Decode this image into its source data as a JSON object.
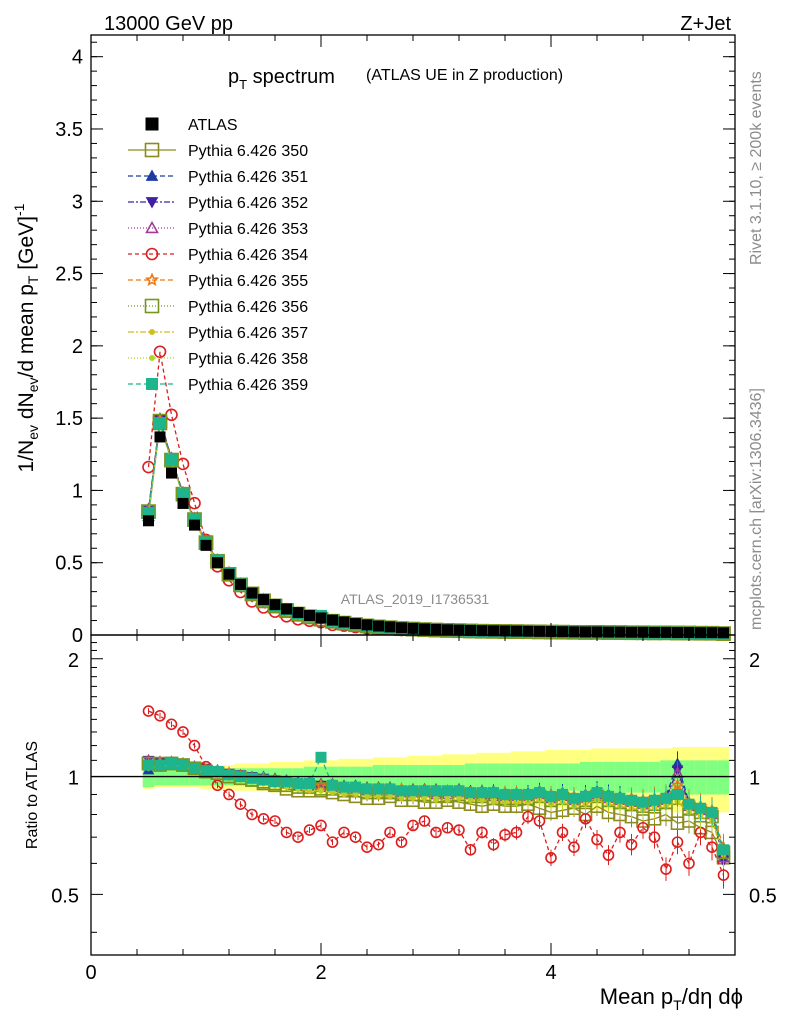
{
  "header": {
    "energy_label": "13000 GeV pp",
    "process_label": "Z+Jet"
  },
  "side_text": {
    "rivet": "Rivet 3.1.10, ≥ 200k events",
    "mcplots": "mcplots.cern.ch [arXiv:1306.3436]"
  },
  "chart_data": {
    "type": "line",
    "title": "p",
    "title_sub": "T",
    "title_rest": " spectrum",
    "title_note": "(ATLAS UE in Z production)",
    "analysis_id": "ATLAS_2019_I1736531",
    "xlabel_parts": [
      "Mean p",
      "T",
      "/dη dϕ"
    ],
    "ylabel_parts": [
      "1/N",
      "ev",
      " dN",
      "ev",
      "/d mean p",
      "T",
      " [GeV]",
      "-1"
    ],
    "ratio_ylabel": "Ratio to ATLAS",
    "xlim": [
      0,
      5.6
    ],
    "ylim": [
      0,
      4.15
    ],
    "ratio_ylim": [
      0.35,
      2.3
    ],
    "x_ticks": [
      "0",
      "2",
      "4"
    ],
    "y_ticks": [
      "0",
      "0.5",
      "1",
      "1.5",
      "2",
      "2.5",
      "3",
      "3.5",
      "4"
    ],
    "ratio_ticks": [
      "0.5",
      "1",
      "2"
    ],
    "x": [
      0.5,
      0.6,
      0.7,
      0.8,
      0.9,
      1.0,
      1.1,
      1.2,
      1.3,
      1.4,
      1.5,
      1.6,
      1.7,
      1.8,
      1.9,
      2.0,
      2.1,
      2.2,
      2.3,
      2.4,
      2.5,
      2.6,
      2.7,
      2.8,
      2.9,
      3.0,
      3.1,
      3.2,
      3.3,
      3.4,
      3.5,
      3.6,
      3.7,
      3.8,
      3.9,
      4.0,
      4.1,
      4.2,
      4.3,
      4.4,
      4.5,
      4.6,
      4.7,
      4.8,
      4.9,
      5.0,
      5.1,
      5.2,
      5.3,
      5.4,
      5.5
    ],
    "data_values": [
      0.79,
      1.37,
      1.12,
      0.91,
      0.76,
      0.62,
      0.5,
      0.42,
      0.35,
      0.29,
      0.245,
      0.21,
      0.18,
      0.155,
      0.135,
      0.118,
      0.103,
      0.09,
      0.079,
      0.07,
      0.062,
      0.056,
      0.05,
      0.046,
      0.042,
      0.039,
      0.036,
      0.034,
      0.032,
      0.03,
      0.029,
      0.028,
      0.027,
      0.026,
      0.025,
      0.024,
      0.023,
      0.022,
      0.021,
      0.021,
      0.02,
      0.02,
      0.019,
      0.019,
      0.018,
      0.018,
      0.017,
      0.017,
      0.016,
      0.016,
      0.015
    ],
    "band_inner": [
      0.06,
      0.05,
      0.05,
      0.05,
      0.05,
      0.05,
      0.05,
      0.05,
      0.05,
      0.05,
      0.05,
      0.05,
      0.05,
      0.05,
      0.06,
      0.06,
      0.06,
      0.06,
      0.06,
      0.06,
      0.07,
      0.07,
      0.07,
      0.07,
      0.07,
      0.07,
      0.07,
      0.07,
      0.08,
      0.08,
      0.08,
      0.08,
      0.08,
      0.08,
      0.08,
      0.08,
      0.08,
      0.08,
      0.09,
      0.09,
      0.09,
      0.09,
      0.09,
      0.09,
      0.09,
      0.1,
      0.1,
      0.1,
      0.1,
      0.1,
      0.1
    ],
    "band_outer": [
      0.07,
      0.06,
      0.06,
      0.06,
      0.06,
      0.07,
      0.07,
      0.07,
      0.08,
      0.08,
      0.08,
      0.09,
      0.09,
      0.09,
      0.1,
      0.1,
      0.1,
      0.11,
      0.11,
      0.11,
      0.12,
      0.12,
      0.12,
      0.13,
      0.13,
      0.13,
      0.14,
      0.14,
      0.14,
      0.15,
      0.15,
      0.15,
      0.16,
      0.16,
      0.16,
      0.17,
      0.17,
      0.17,
      0.17,
      0.18,
      0.18,
      0.18,
      0.18,
      0.18,
      0.18,
      0.18,
      0.19,
      0.19,
      0.19,
      0.19,
      0.19
    ],
    "series": [
      {
        "name": "ATLAS",
        "color": "#000000",
        "marker": "fsquare",
        "dash": "",
        "ratio": [
          1
        ]
      },
      {
        "name": "Pythia 6.426 350",
        "color": "#8c8c1e",
        "marker": "osquare",
        "dash": "",
        "ratio": [
          1.08,
          1.07,
          1.08,
          1.07,
          1.05,
          1.03,
          1.02,
          1.0,
          0.99,
          0.98,
          0.96,
          0.95,
          0.93,
          0.92,
          0.92,
          0.92,
          0.91,
          0.9,
          0.89,
          0.88,
          0.88,
          0.89,
          0.87,
          0.87,
          0.86,
          0.86,
          0.87,
          0.86,
          0.85,
          0.84,
          0.85,
          0.84,
          0.84,
          0.85,
          0.83,
          0.81,
          0.82,
          0.83,
          0.8,
          0.84,
          0.81,
          0.8,
          0.79,
          0.77,
          0.78,
          0.8,
          0.76,
          0.77,
          0.74,
          0.72,
          0.62
        ]
      },
      {
        "name": "Pythia 6.426 351",
        "color": "#1e3ca0",
        "marker": "ftriup",
        "dash": "5,3",
        "ratio": [
          1.04,
          1.08,
          1.09,
          1.07,
          1.06,
          1.04,
          1.04,
          1.02,
          1.01,
          1.0,
          1.0,
          0.99,
          0.98,
          0.97,
          0.97,
          0.96,
          0.96,
          0.95,
          0.95,
          0.94,
          0.94,
          0.94,
          0.93,
          0.93,
          0.93,
          0.93,
          0.92,
          0.93,
          0.92,
          0.92,
          0.92,
          0.91,
          0.91,
          0.91,
          0.92,
          0.9,
          0.91,
          0.89,
          0.9,
          0.92,
          0.9,
          0.89,
          0.88,
          0.87,
          0.88,
          0.89,
          1.08,
          0.86,
          0.84,
          0.82,
          0.64
        ]
      },
      {
        "name": "Pythia 6.426 352",
        "color": "#4020a0",
        "marker": "ftridown",
        "dash": "6,2,2,2",
        "ratio": [
          1.1,
          1.09,
          1.09,
          1.08,
          1.06,
          1.05,
          1.03,
          1.02,
          1.01,
          1.0,
          0.99,
          0.98,
          0.97,
          0.96,
          0.96,
          0.95,
          0.95,
          0.94,
          0.94,
          0.93,
          0.93,
          0.93,
          0.92,
          0.92,
          0.92,
          0.92,
          0.91,
          0.92,
          0.91,
          0.91,
          0.91,
          0.9,
          0.9,
          0.9,
          0.91,
          0.89,
          0.9,
          0.88,
          0.89,
          0.91,
          0.89,
          0.88,
          0.87,
          0.86,
          0.87,
          0.88,
          1.04,
          0.85,
          0.83,
          0.81,
          0.61
        ]
      },
      {
        "name": "Pythia 6.426 353",
        "color": "#a03c96",
        "marker": "otriup",
        "dash": "1,2",
        "ratio": [
          1.1,
          1.09,
          1.09,
          1.08,
          1.06,
          1.04,
          1.03,
          1.02,
          1.0,
          0.99,
          0.98,
          0.97,
          0.96,
          0.95,
          0.95,
          0.94,
          0.94,
          0.93,
          0.93,
          0.92,
          0.92,
          0.92,
          0.91,
          0.91,
          0.91,
          0.9,
          0.9,
          0.91,
          0.9,
          0.9,
          0.89,
          0.89,
          0.89,
          0.89,
          0.9,
          0.88,
          0.89,
          0.87,
          0.88,
          0.9,
          0.88,
          0.87,
          0.86,
          0.85,
          0.86,
          0.87,
          1.02,
          0.84,
          0.82,
          0.8,
          0.62
        ]
      },
      {
        "name": "Pythia 6.426 354",
        "color": "#dc1e1e",
        "marker": "ocircle",
        "dash": "4,3",
        "ratio": [
          1.47,
          1.43,
          1.36,
          1.3,
          1.2,
          1.06,
          0.95,
          0.9,
          0.85,
          0.8,
          0.78,
          0.77,
          0.72,
          0.7,
          0.73,
          0.75,
          0.68,
          0.72,
          0.7,
          0.66,
          0.67,
          0.72,
          0.68,
          0.75,
          0.77,
          0.72,
          0.74,
          0.73,
          0.65,
          0.72,
          0.67,
          0.71,
          0.72,
          0.79,
          0.77,
          0.62,
          0.72,
          0.66,
          0.78,
          0.69,
          0.63,
          0.72,
          0.67,
          0.74,
          0.7,
          0.58,
          0.68,
          0.6,
          0.72,
          0.66,
          0.56
        ]
      },
      {
        "name": "Pythia 6.426 355",
        "color": "#f07814",
        "marker": "ostar",
        "dash": "5,3",
        "ratio": [
          1.07,
          1.08,
          1.08,
          1.07,
          1.05,
          1.04,
          1.03,
          1.02,
          1.0,
          0.99,
          0.99,
          0.98,
          0.97,
          0.96,
          0.96,
          0.95,
          0.95,
          0.94,
          0.94,
          0.93,
          0.93,
          0.93,
          0.93,
          0.92,
          0.92,
          0.92,
          0.92,
          0.92,
          0.91,
          0.91,
          0.91,
          0.91,
          0.91,
          0.9,
          0.91,
          0.9,
          0.9,
          0.89,
          0.89,
          0.91,
          0.89,
          0.88,
          0.88,
          0.87,
          0.88,
          0.89,
          0.95,
          0.86,
          0.84,
          0.82,
          0.66
        ]
      },
      {
        "name": "Pythia 6.426 356",
        "color": "#78961e",
        "marker": "osquare",
        "dash": "1,2",
        "ratio": [
          1.08,
          1.08,
          1.08,
          1.07,
          1.05,
          1.03,
          1.02,
          1.0,
          0.99,
          0.98,
          0.97,
          0.96,
          0.95,
          0.94,
          0.94,
          0.93,
          0.93,
          0.92,
          0.92,
          0.91,
          0.91,
          0.91,
          0.9,
          0.9,
          0.9,
          0.89,
          0.89,
          0.9,
          0.89,
          0.89,
          0.88,
          0.88,
          0.88,
          0.88,
          0.89,
          0.87,
          0.88,
          0.86,
          0.87,
          0.89,
          0.87,
          0.86,
          0.85,
          0.84,
          0.85,
          0.86,
          0.88,
          0.83,
          0.81,
          0.79,
          0.64
        ]
      },
      {
        "name": "Pythia 6.426 357",
        "color": "#d2be1e",
        "marker": "fdot",
        "dash": "6,2,2,2",
        "ratio": [
          1.05,
          1.06,
          1.07,
          1.06,
          1.04,
          1.02,
          1.01,
          0.99,
          0.98,
          0.97,
          0.96,
          0.95,
          0.94,
          0.93,
          0.92,
          0.92,
          0.91,
          0.9,
          0.9,
          0.89,
          0.89,
          0.89,
          0.88,
          0.88,
          0.88,
          0.87,
          0.87,
          0.88,
          0.87,
          0.87,
          0.86,
          0.86,
          0.86,
          0.86,
          0.87,
          0.85,
          0.86,
          0.84,
          0.85,
          0.87,
          0.85,
          0.84,
          0.83,
          0.82,
          0.83,
          0.84,
          0.86,
          0.81,
          0.79,
          0.77,
          0.63
        ]
      },
      {
        "name": "Pythia 6.426 358",
        "color": "#b4d228",
        "marker": "fdot",
        "dash": "1,2",
        "ratio": [
          1.06,
          1.07,
          1.07,
          1.06,
          1.04,
          1.02,
          1.01,
          0.99,
          0.98,
          0.97,
          0.96,
          0.95,
          0.94,
          0.93,
          0.93,
          0.92,
          0.92,
          0.91,
          0.91,
          0.9,
          0.9,
          0.9,
          0.89,
          0.89,
          0.89,
          0.88,
          0.88,
          0.89,
          0.88,
          0.88,
          0.87,
          0.87,
          0.87,
          0.87,
          0.88,
          0.86,
          0.87,
          0.85,
          0.86,
          0.88,
          0.86,
          0.85,
          0.84,
          0.83,
          0.84,
          0.85,
          0.87,
          0.82,
          0.8,
          0.78,
          0.64
        ]
      },
      {
        "name": "Pythia 6.426 359",
        "color": "#1eb48c",
        "marker": "fsquare",
        "dash": "5,3",
        "ratio": [
          1.07,
          1.07,
          1.08,
          1.07,
          1.05,
          1.03,
          1.03,
          1.01,
          1.0,
          0.99,
          0.98,
          0.97,
          0.97,
          0.96,
          0.96,
          1.12,
          0.95,
          0.94,
          0.94,
          0.93,
          0.93,
          0.93,
          0.92,
          0.92,
          0.92,
          0.92,
          0.92,
          0.92,
          0.91,
          0.91,
          0.91,
          0.9,
          0.9,
          0.9,
          0.91,
          0.89,
          0.9,
          0.88,
          0.89,
          0.91,
          0.89,
          0.88,
          0.87,
          0.86,
          0.87,
          0.88,
          0.9,
          0.85,
          0.83,
          0.81,
          0.65
        ]
      }
    ]
  }
}
